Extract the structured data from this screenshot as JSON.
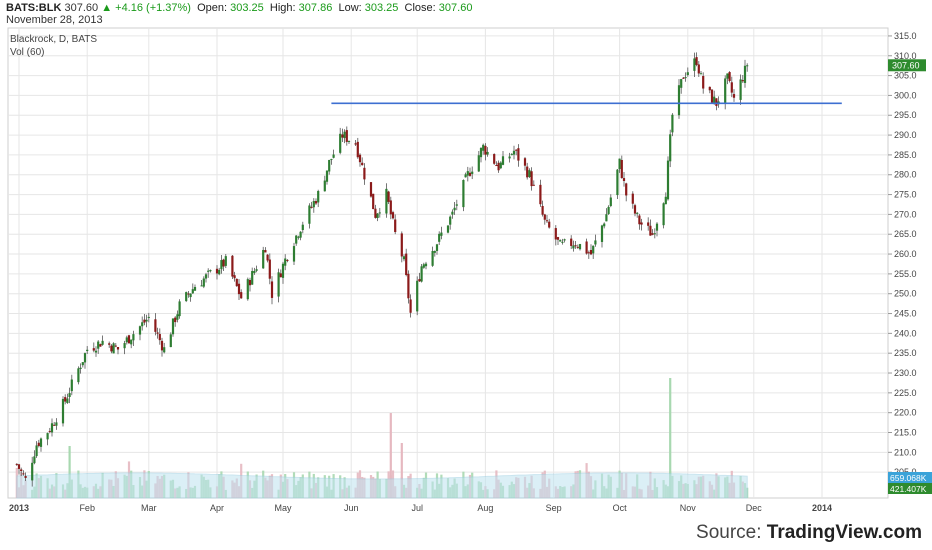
{
  "header": {
    "symbol": "BATS:BLK",
    "last": "307.60",
    "change": "+4.16 (+1.37%)",
    "open_label": "Open:",
    "open": "303.25",
    "high_label": "High:",
    "high": "307.86",
    "low_label": "Low:",
    "low": "303.25",
    "close_label": "Close:",
    "close": "307.60",
    "date": "November 28, 2013"
  },
  "legend": {
    "title": "Blackrock, D, BATS",
    "volume": "Vol (60)"
  },
  "source": {
    "prefix": "Source: ",
    "brand": "TradingView.com"
  },
  "colors": {
    "up": "#2e7d32",
    "down": "#8b1a1a",
    "line": "#3d6fd1",
    "grid": "#e6e6e6",
    "vol_up": "#a8d8b0",
    "vol_down": "#e6b8c0",
    "vol_ma": "#bfe3f0",
    "price_badge": "#2e8b2e",
    "vol_badge1": "#3aa3d9",
    "vol_badge2": "#2e8b2e"
  },
  "chart_data": {
    "type": "candlestick",
    "title": "Blackrock, D, BATS",
    "y_ticks": [
      205,
      210,
      215,
      220,
      225,
      230,
      235,
      240,
      245,
      250,
      255,
      260,
      265,
      270,
      275,
      280,
      285,
      290,
      295,
      300,
      305,
      310,
      315
    ],
    "ylim": [
      200,
      317
    ],
    "x_ticks": [
      {
        "label": "2013",
        "date": "2013-01-01"
      },
      {
        "label": "Feb",
        "date": "2013-02-01"
      },
      {
        "label": "Mar",
        "date": "2013-03-01"
      },
      {
        "label": "Apr",
        "date": "2013-04-01"
      },
      {
        "label": "May",
        "date": "2013-05-01"
      },
      {
        "label": "Jun",
        "date": "2013-06-01"
      },
      {
        "label": "Jul",
        "date": "2013-07-01"
      },
      {
        "label": "Aug",
        "date": "2013-08-01"
      },
      {
        "label": "Sep",
        "date": "2013-09-01"
      },
      {
        "label": "Oct",
        "date": "2013-10-01"
      },
      {
        "label": "Nov",
        "date": "2013-11-01"
      },
      {
        "label": "Dec",
        "date": "2013-12-01"
      },
      {
        "label": "2014",
        "date": "2014-01-01"
      }
    ],
    "xlim": [
      "2012-12-27",
      "2014-01-31"
    ],
    "price_path": [
      [
        "2012-12-31",
        207
      ],
      [
        "2013-01-04",
        203
      ],
      [
        "2013-01-09",
        212
      ],
      [
        "2013-01-15",
        216
      ],
      [
        "2013-01-22",
        223
      ],
      [
        "2013-01-28",
        231
      ],
      [
        "2013-02-01",
        236
      ],
      [
        "2013-02-08",
        238
      ],
      [
        "2013-02-15",
        236
      ],
      [
        "2013-02-22",
        240
      ],
      [
        "2013-03-01",
        244
      ],
      [
        "2013-03-08",
        236
      ],
      [
        "2013-03-15",
        247
      ],
      [
        "2013-03-22",
        252
      ],
      [
        "2013-03-29",
        255
      ],
      [
        "2013-04-05",
        258
      ],
      [
        "2013-04-12",
        249
      ],
      [
        "2013-04-19",
        257
      ],
      [
        "2013-04-23",
        262
      ],
      [
        "2013-04-26",
        250
      ],
      [
        "2013-05-03",
        260
      ],
      [
        "2013-05-10",
        268
      ],
      [
        "2013-05-17",
        275
      ],
      [
        "2013-05-22",
        283
      ],
      [
        "2013-05-28",
        290
      ],
      [
        "2013-06-03",
        288
      ],
      [
        "2013-06-07",
        280
      ],
      [
        "2013-06-12",
        270
      ],
      [
        "2013-06-17",
        275
      ],
      [
        "2013-06-21",
        265
      ],
      [
        "2013-06-25",
        258
      ],
      [
        "2013-06-28",
        245
      ],
      [
        "2013-07-03",
        257
      ],
      [
        "2013-07-10",
        263
      ],
      [
        "2013-07-17",
        270
      ],
      [
        "2013-07-24",
        280
      ],
      [
        "2013-07-31",
        287
      ],
      [
        "2013-08-07",
        282
      ],
      [
        "2013-08-14",
        286
      ],
      [
        "2013-08-21",
        280
      ],
      [
        "2013-08-28",
        268
      ],
      [
        "2013-09-04",
        262
      ],
      [
        "2013-09-11",
        263
      ],
      [
        "2013-09-18",
        260
      ],
      [
        "2013-09-25",
        270
      ],
      [
        "2013-10-01",
        283
      ],
      [
        "2013-10-04",
        275
      ],
      [
        "2013-10-10",
        268
      ],
      [
        "2013-10-16",
        265
      ],
      [
        "2013-10-22",
        276
      ],
      [
        "2013-10-25",
        295
      ],
      [
        "2013-10-30",
        305
      ],
      [
        "2013-11-05",
        309
      ],
      [
        "2013-11-08",
        302
      ],
      [
        "2013-11-14",
        298
      ],
      [
        "2013-11-19",
        304
      ],
      [
        "2013-11-22",
        299
      ],
      [
        "2013-11-28",
        307.6
      ]
    ],
    "horizontal_line": {
      "value": 298,
      "from": "2013-05-23",
      "to": "2014-01-10"
    },
    "current_price": 307.6,
    "price_label": "307.60",
    "volume_labels": [
      "659.068K",
      "421.407K"
    ]
  }
}
